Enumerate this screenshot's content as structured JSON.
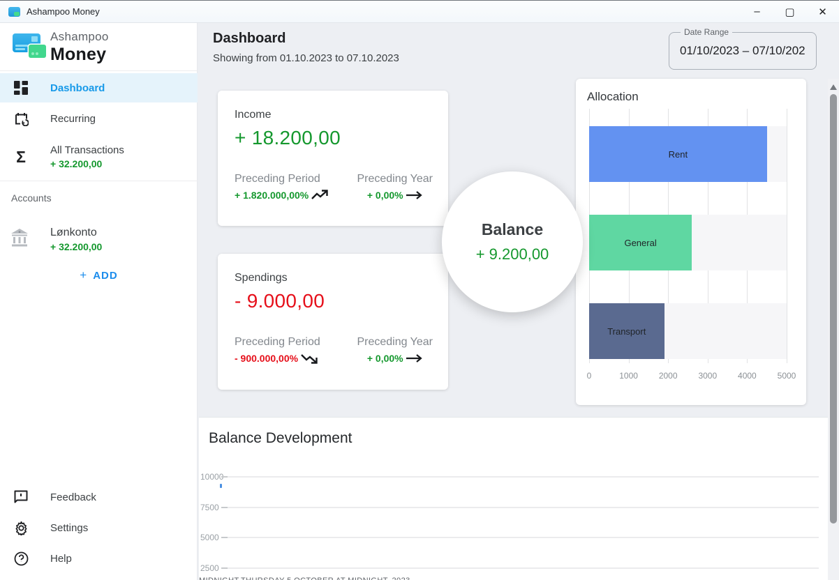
{
  "window": {
    "title": "Ashampoo Money",
    "controls": {
      "minimize": "–",
      "maximize": "▢",
      "close": "✕"
    }
  },
  "sidebar": {
    "brand": {
      "line1": "Ashampoo",
      "line2": "Money"
    },
    "nav": [
      {
        "id": "dashboard",
        "label": "Dashboard",
        "active": true
      },
      {
        "id": "recurring",
        "label": "Recurring",
        "active": false
      },
      {
        "id": "all-transactions",
        "label": "All Transactions",
        "amount": "+ 32.200,00",
        "active": false
      }
    ],
    "accounts": {
      "header": "Accounts",
      "items": [
        {
          "name": "Lønkonto",
          "amount": "+ 32.200,00"
        }
      ],
      "add_label": "ADD",
      "add_plus": "+"
    },
    "footer": [
      {
        "id": "feedback",
        "label": "Feedback"
      },
      {
        "id": "settings",
        "label": "Settings"
      },
      {
        "id": "help",
        "label": "Help"
      }
    ]
  },
  "header": {
    "title": "Dashboard",
    "subtitle": "Showing from 01.10.2023 to 07.10.2023",
    "date_range": {
      "label": "Date Range",
      "value": "01/10/2023 – 07/10/202"
    }
  },
  "cards": {
    "income": {
      "title": "Income",
      "amount": "+ 18.200,00",
      "preceding_period_label": "Preceding Period",
      "preceding_period_value": "+ 1.820.000,00%",
      "preceding_period_trend": "up",
      "preceding_year_label": "Preceding Year",
      "preceding_year_value": "+ 0,00%",
      "preceding_year_trend": "flat"
    },
    "spendings": {
      "title": "Spendings",
      "amount": "- 9.000,00",
      "preceding_period_label": "Preceding Period",
      "preceding_period_value": "- 900.000,00%",
      "preceding_period_trend": "down",
      "preceding_year_label": "Preceding Year",
      "preceding_year_value": "+ 0,00%",
      "preceding_year_trend": "flat"
    },
    "balance": {
      "title": "Balance",
      "amount": "+ 9.200,00"
    }
  },
  "colors": {
    "accent_blue": "#189ae9",
    "positive_green": "#15982e",
    "negative_red": "#e60f1a",
    "bar_rent": "#6392f1",
    "bar_general": "#5fd7a2",
    "bar_transport": "#5a6a90"
  },
  "chart_data": [
    {
      "type": "bar",
      "orientation": "horizontal",
      "title": "Allocation",
      "categories": [
        "Rent",
        "General",
        "Transport"
      ],
      "values": [
        4500,
        2600,
        1900
      ],
      "colors": [
        "#6392f1",
        "#5fd7a2",
        "#5a6a90"
      ],
      "xlim": [
        0,
        5000
      ],
      "x_ticks": [
        0,
        1000,
        2000,
        3000,
        4000,
        5000
      ],
      "grid": true,
      "legend": false
    },
    {
      "type": "line",
      "title": "Balance Development",
      "ylim": [
        0,
        10000
      ],
      "y_ticks": [
        10000,
        7500,
        5000,
        2500
      ],
      "x_range": [
        "01.10.2023",
        "07.10.2023"
      ],
      "series": [
        {
          "name": "Balance",
          "values": [
            9200
          ]
        }
      ],
      "visible_points": [
        {
          "x": "01.10.2023",
          "y": 9200
        }
      ],
      "x_labels_clipped": [
        "MIDNIGHT",
        "THURSDAY 5 OCTOBER AT MIDNIGHT, 2023"
      ],
      "grid": true,
      "legend": false
    }
  ]
}
